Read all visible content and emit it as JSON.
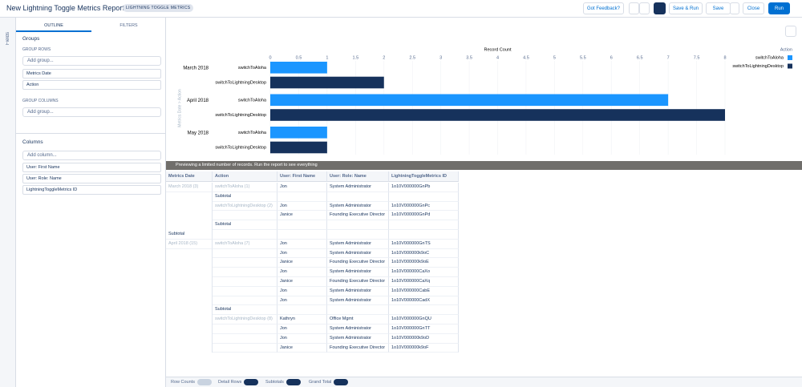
{
  "header": {
    "title": "New Lightning Toggle Metrics Report",
    "badge": "LIGHTNING TOGGLE METRICS",
    "buttons": [
      "Got Feedback?",
      "Save & Run",
      "Save",
      "Close",
      "Run"
    ]
  },
  "sidebar": {
    "tab": "Fields",
    "tabs": [
      "OUTLINE",
      "FILTERS"
    ],
    "groups": {
      "title": "Groups",
      "rows_label": "GROUP ROWS",
      "rows_placeholder": "Add group...",
      "rows": [
        "Metrics Date",
        "Action"
      ],
      "columns_label": "GROUP COLUMNS",
      "columns_placeholder": "Add group..."
    },
    "columns": {
      "title": "Columns",
      "placeholder": "Add column...",
      "items": [
        "User: First Name",
        "User: Role: Name",
        "LightningToggleMetrics ID"
      ]
    }
  },
  "chart_data": {
    "type": "bar",
    "orientation": "horizontal",
    "x_label": "Record Count",
    "y_label": "Metrics Date > Action",
    "legend_title": "Action",
    "legend": "right",
    "grid": true,
    "categories": [
      "March 2018",
      "April 2018",
      "May 2018"
    ],
    "series": [
      {
        "name": "switchToAloha",
        "color": "#1b96ff",
        "values": [
          1,
          7,
          1
        ]
      },
      {
        "name": "switchToLightningDesktop",
        "color": "#16325c",
        "values": [
          2,
          8,
          1
        ]
      }
    ],
    "xlim": [
      0,
      8
    ],
    "xticks": [
      0,
      0.5,
      1,
      1.5,
      2,
      2.5,
      3,
      3.5,
      4,
      4.5,
      5,
      5.5,
      6,
      6.5,
      7,
      7.5,
      8
    ]
  },
  "banner": "Previewing a limited number of records. Run the report to see everything",
  "table": {
    "headers": [
      "Metrics Date",
      "Action",
      "User: First Name",
      "User: Role: Name",
      "LightningToggleMetrics ID"
    ],
    "rows": [
      {
        "0": "March 2018 (3)",
        "1": "switchToAloha (1)",
        "2": "Jon",
        "3": "System Administrator",
        "4": "1o10V000000GnPb"
      },
      {
        "1": "Subtotal"
      },
      {
        "1": "switchToLightningDesktop (2)",
        "2": "Jon",
        "3": "System Administrator",
        "4": "1o10V000000GnPc"
      },
      {
        "2": "Janice",
        "3": "Founding Executive Director",
        "4": "1o10V000000GnPd"
      },
      {
        "1": "Subtotal"
      },
      {
        "0": "Subtotal"
      },
      {
        "0": "April 2018 (15)",
        "1": "switchToAloha (7)",
        "2": "Jon",
        "3": "System Administrator",
        "4": "1o10V000000GnTS"
      },
      {
        "2": "Jon",
        "3": "System Administrator",
        "4": "1o10V000000k9oC"
      },
      {
        "2": "Janice",
        "3": "Founding Executive Director",
        "4": "1o10V000000k9oE"
      },
      {
        "2": "Jon",
        "3": "System Administrator",
        "4": "1o10V000000CaXo"
      },
      {
        "2": "Janice",
        "3": "Founding Executive Director",
        "4": "1o10V000000CaXq"
      },
      {
        "2": "Jon",
        "3": "System Administrator",
        "4": "1o10V000000CabE"
      },
      {
        "2": "Jon",
        "3": "System Administrator",
        "4": "1o10V000000CadX"
      },
      {
        "1": "Subtotal"
      },
      {
        "1": "switchToLightningDesktop (8)",
        "2": "Kathryn",
        "3": "Office Mgmt",
        "4": "1o10V000000GnQU"
      },
      {
        "2": "Jon",
        "3": "System Administrator",
        "4": "1o10V000000GnTT"
      },
      {
        "2": "Jon",
        "3": "System Administrator",
        "4": "1o10V000000k9oD"
      },
      {
        "2": "Janice",
        "3": "Founding Executive Director",
        "4": "1o10V000000k9oF"
      }
    ]
  },
  "footer": {
    "toggles": [
      {
        "label": "Row Counts",
        "on": false
      },
      {
        "label": "Detail Rows",
        "on": true
      },
      {
        "label": "Subtotals",
        "on": true
      },
      {
        "label": "Grand Total",
        "on": true
      }
    ]
  }
}
